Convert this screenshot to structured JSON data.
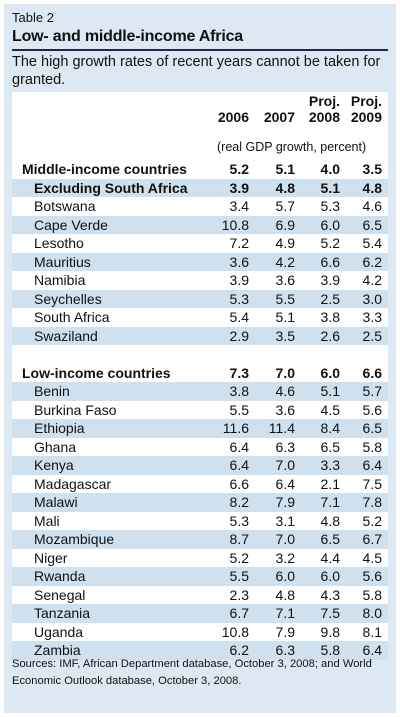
{
  "table": {
    "label": "Table 2",
    "title": "Low- and middle-income Africa",
    "subtitle": "The high growth rates of recent years cannot be taken for granted.",
    "columns": [
      {
        "top": "",
        "bottom": "2006"
      },
      {
        "top": "",
        "bottom": "2007"
      },
      {
        "top": "Proj.",
        "bottom": "2008"
      },
      {
        "top": "Proj.",
        "bottom": "2009"
      }
    ],
    "units": "(real GDP growth, percent)",
    "groups": [
      {
        "rows": [
          {
            "name": "Middle-income countries",
            "level": "group",
            "values": [
              "5.2",
              "5.1",
              "4.0",
              "3.5"
            ]
          },
          {
            "name": "Excluding South Africa",
            "level": "subgroup",
            "values": [
              "3.9",
              "4.8",
              "5.1",
              "4.8"
            ]
          },
          {
            "name": "Botswana",
            "level": "country",
            "values": [
              "3.4",
              "5.7",
              "5.3",
              "4.6"
            ]
          },
          {
            "name": "Cape Verde",
            "level": "country",
            "values": [
              "10.8",
              "6.9",
              "6.0",
              "6.5"
            ]
          },
          {
            "name": "Lesotho",
            "level": "country",
            "values": [
              "7.2",
              "4.9",
              "5.2",
              "5.4"
            ]
          },
          {
            "name": "Mauritius",
            "level": "country",
            "values": [
              "3.6",
              "4.2",
              "6.6",
              "6.2"
            ]
          },
          {
            "name": "Namibia",
            "level": "country",
            "values": [
              "3.9",
              "3.6",
              "3.9",
              "4.2"
            ]
          },
          {
            "name": "Seychelles",
            "level": "country",
            "values": [
              "5.3",
              "5.5",
              "2.5",
              "3.0"
            ]
          },
          {
            "name": "South Africa",
            "level": "country",
            "values": [
              "5.4",
              "5.1",
              "3.8",
              "3.3"
            ]
          },
          {
            "name": "Swaziland",
            "level": "country",
            "values": [
              "2.9",
              "3.5",
              "2.6",
              "2.5"
            ]
          }
        ]
      },
      {
        "rows": [
          {
            "name": "Low-income countries",
            "level": "group",
            "values": [
              "7.3",
              "7.0",
              "6.0",
              "6.6"
            ]
          },
          {
            "name": "Benin",
            "level": "country",
            "values": [
              "3.8",
              "4.6",
              "5.1",
              "5.7"
            ]
          },
          {
            "name": "Burkina Faso",
            "level": "country",
            "values": [
              "5.5",
              "3.6",
              "4.5",
              "5.6"
            ]
          },
          {
            "name": "Ethiopia",
            "level": "country",
            "values": [
              "11.6",
              "11.4",
              "8.4",
              "6.5"
            ]
          },
          {
            "name": "Ghana",
            "level": "country",
            "values": [
              "6.4",
              "6.3",
              "6.5",
              "5.8"
            ]
          },
          {
            "name": "Kenya",
            "level": "country",
            "values": [
              "6.4",
              "7.0",
              "3.3",
              "6.4"
            ]
          },
          {
            "name": "Madagascar",
            "level": "country",
            "values": [
              "6.6",
              "6.4",
              "2.1",
              "7.5"
            ]
          },
          {
            "name": "Malawi",
            "level": "country",
            "values": [
              "8.2",
              "7.9",
              "7.1",
              "7.8"
            ]
          },
          {
            "name": "Mali",
            "level": "country",
            "values": [
              "5.3",
              "3.1",
              "4.8",
              "5.2"
            ]
          },
          {
            "name": "Mozambique",
            "level": "country",
            "values": [
              "8.7",
              "7.0",
              "6.5",
              "6.7"
            ]
          },
          {
            "name": "Niger",
            "level": "country",
            "values": [
              "5.2",
              "3.2",
              "4.4",
              "4.5"
            ]
          },
          {
            "name": "Rwanda",
            "level": "country",
            "values": [
              "5.5",
              "6.0",
              "6.0",
              "5.6"
            ]
          },
          {
            "name": "Senegal",
            "level": "country",
            "values": [
              "2.3",
              "4.8",
              "4.3",
              "5.8"
            ]
          },
          {
            "name": "Tanzania",
            "level": "country",
            "values": [
              "6.7",
              "7.1",
              "7.5",
              "8.0"
            ]
          },
          {
            "name": "Uganda",
            "level": "country",
            "values": [
              "10.8",
              "7.9",
              "9.8",
              "8.1"
            ]
          },
          {
            "name": "Zambia",
            "level": "country",
            "values": [
              "6.2",
              "6.3",
              "5.8",
              "6.4"
            ]
          }
        ]
      }
    ],
    "sources": "Sources: IMF, African Department database, October 3, 2008; and World Economic Outlook database, October 3, 2008."
  },
  "colors": {
    "frame_background": "#dde8f2",
    "row_shade": "#cfe0ef",
    "title_rule": "#1f2a44"
  }
}
